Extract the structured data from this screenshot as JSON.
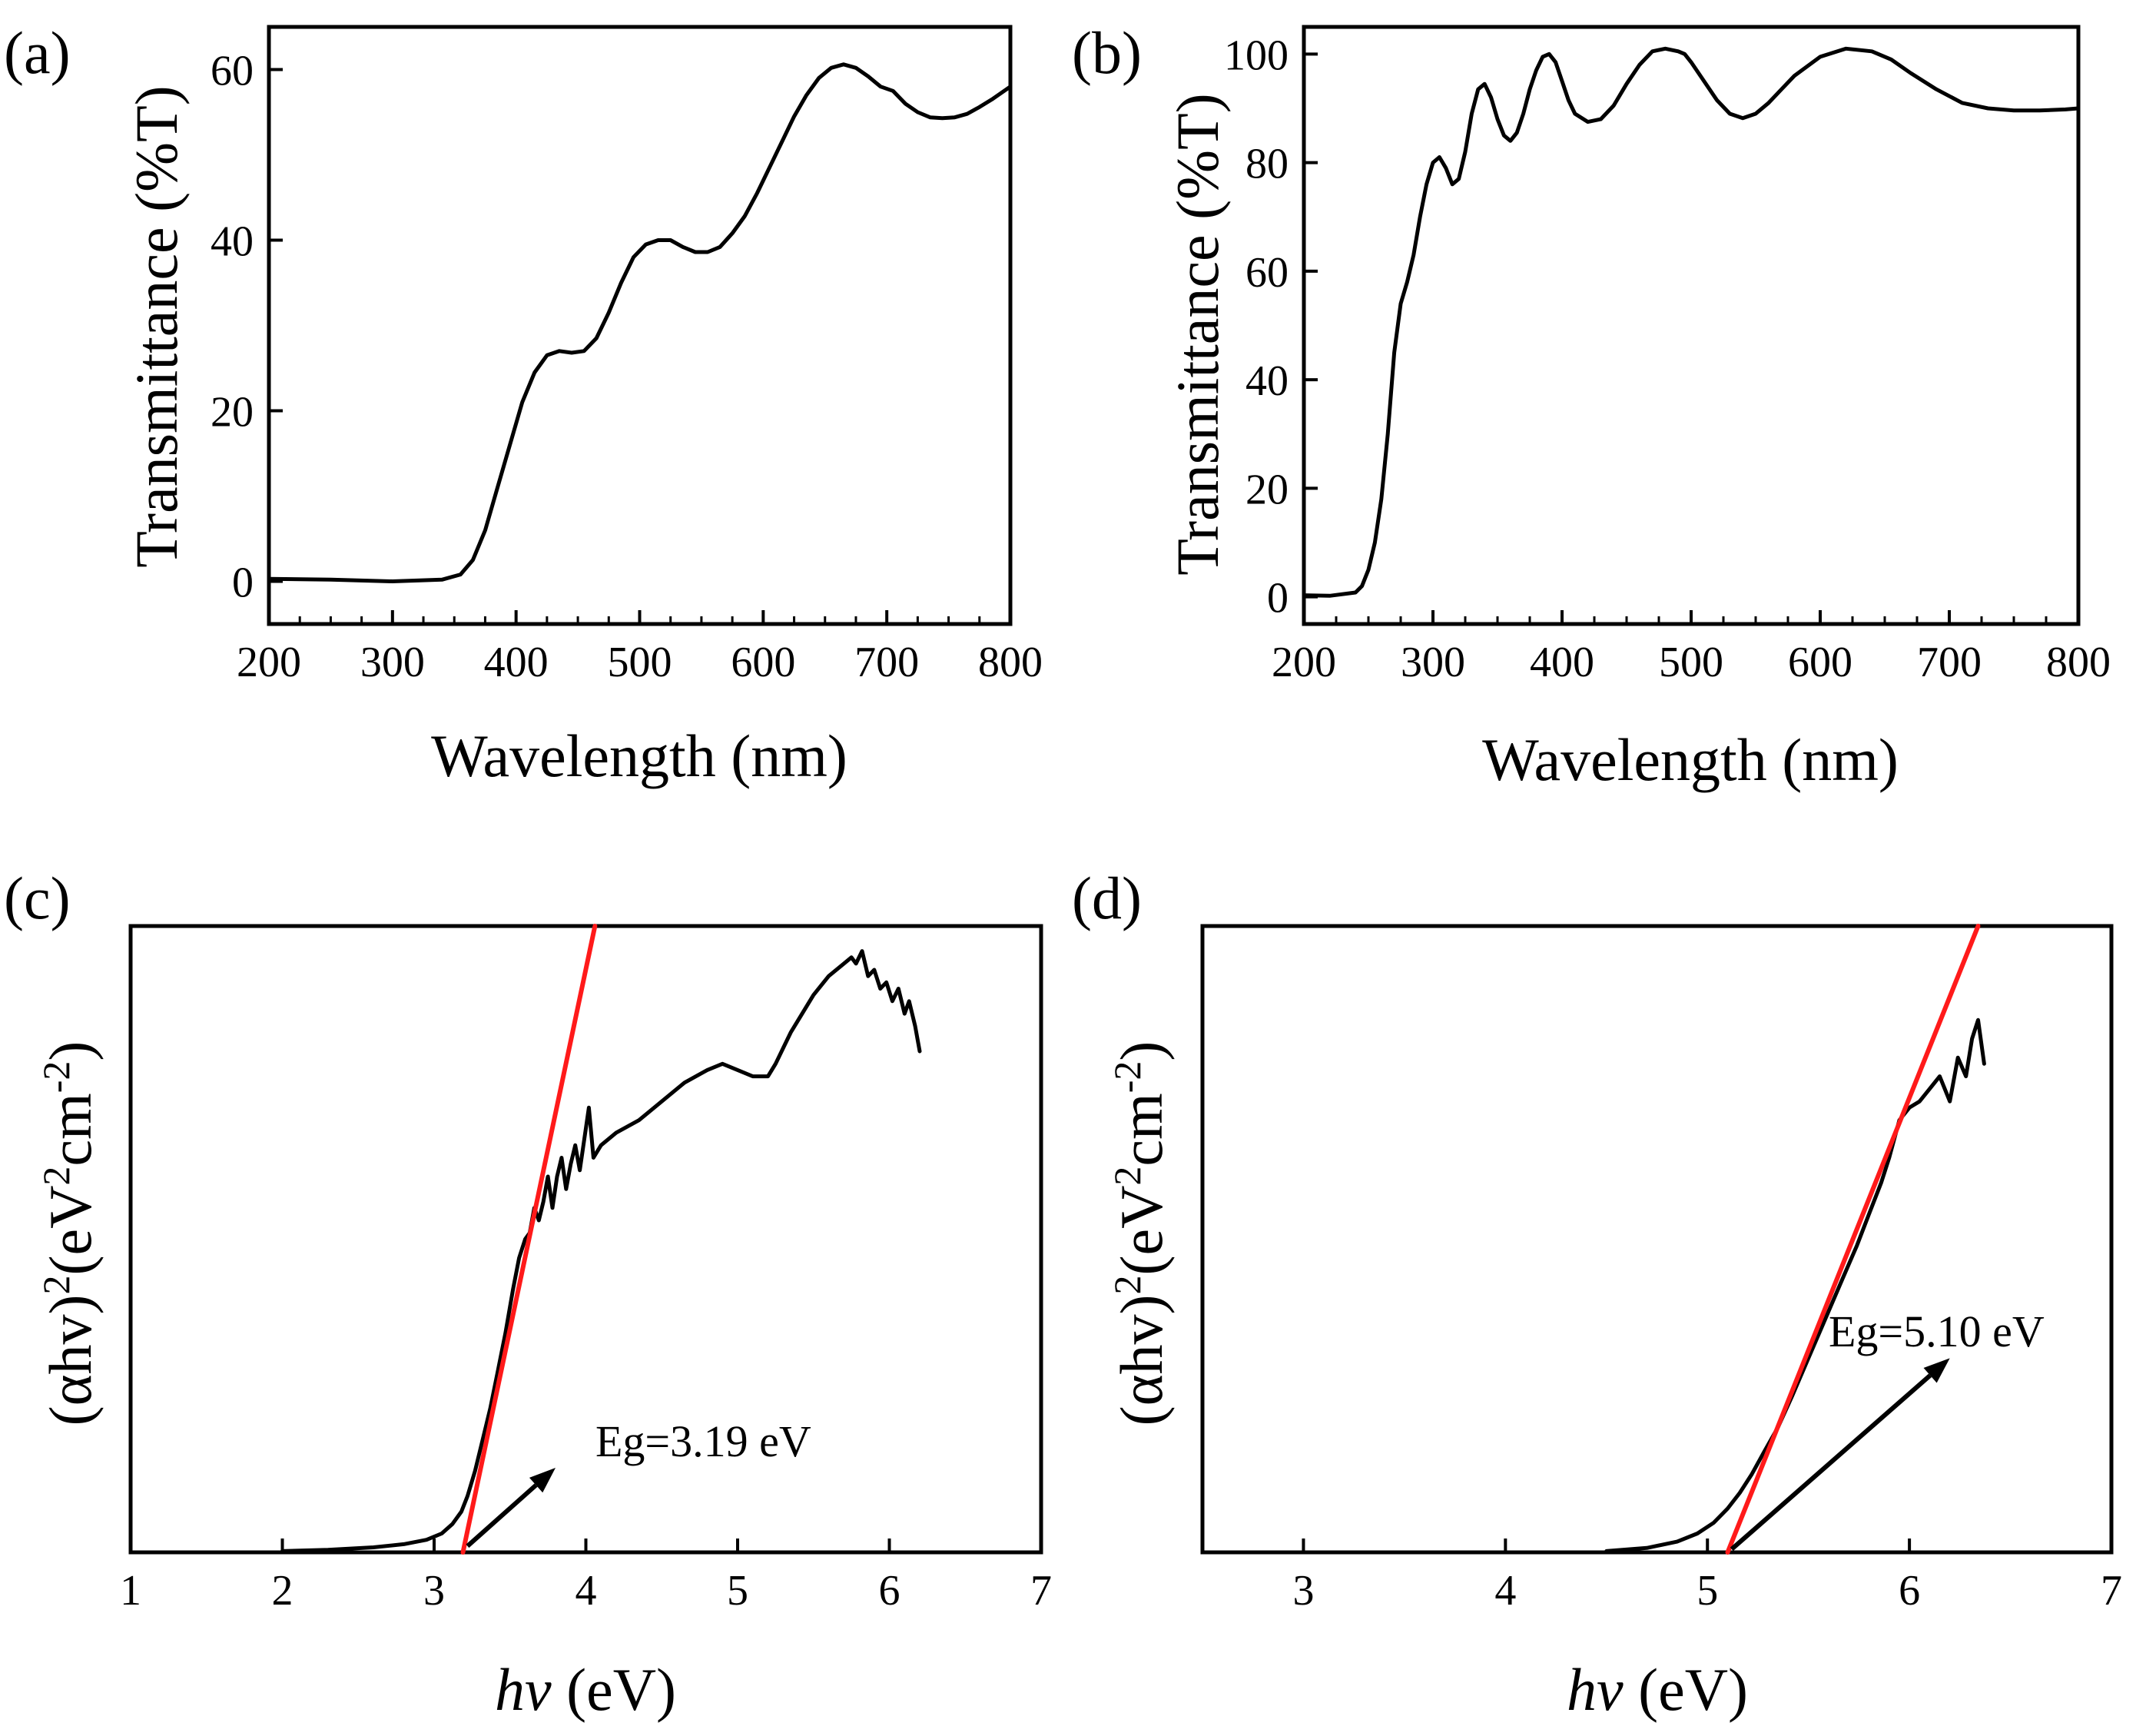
{
  "chart_data": [
    {
      "id": "a",
      "type": "line",
      "panel_label": "(a)",
      "xlabel": "Wavelength (nm)",
      "ylabel": "Transmittance (%T)",
      "xlim": [
        200,
        800
      ],
      "ylim": [
        -5,
        65
      ],
      "xticks": [
        200,
        300,
        400,
        500,
        600,
        700,
        800
      ],
      "yticks": [
        0,
        20,
        40,
        60
      ],
      "grid": false,
      "series": [
        {
          "x": [
            200,
            250,
            300,
            340,
            355,
            365,
            375,
            385,
            395,
            405,
            415,
            425,
            435,
            445,
            455,
            465,
            475,
            485,
            495,
            505,
            515,
            525,
            535,
            545,
            555,
            565,
            575,
            585,
            595,
            605,
            615,
            625,
            635,
            645,
            655,
            665,
            675,
            685,
            695,
            705,
            715,
            725,
            735,
            745,
            755,
            765,
            775,
            785,
            800
          ],
          "y": [
            0.3,
            0.2,
            0.0,
            0.2,
            0.8,
            2.5,
            6.0,
            11.0,
            16.0,
            21.0,
            24.5,
            26.5,
            27.0,
            26.8,
            27.0,
            28.5,
            31.5,
            35.0,
            38.0,
            39.5,
            40.0,
            40.0,
            39.2,
            38.6,
            38.6,
            39.2,
            40.8,
            42.8,
            45.5,
            48.5,
            51.5,
            54.5,
            57.0,
            59.0,
            60.2,
            60.6,
            60.2,
            59.2,
            58.0,
            57.5,
            56.0,
            55.0,
            54.4,
            54.3,
            54.4,
            54.8,
            55.6,
            56.5,
            58.0
          ]
        }
      ]
    },
    {
      "id": "b",
      "type": "line",
      "panel_label": "(b)",
      "xlabel": "Wavelength (nm)",
      "ylabel": "Transmittance (%T)",
      "xlim": [
        200,
        800
      ],
      "ylim": [
        -5,
        105
      ],
      "xticks": [
        200,
        300,
        400,
        500,
        600,
        700,
        800
      ],
      "yticks": [
        0,
        20,
        40,
        60,
        80,
        100
      ],
      "grid": false,
      "series": [
        {
          "x": [
            200,
            220,
            240,
            245,
            250,
            255,
            260,
            265,
            270,
            275,
            280,
            285,
            290,
            295,
            300,
            305,
            310,
            315,
            320,
            325,
            330,
            335,
            340,
            345,
            350,
            355,
            360,
            365,
            370,
            375,
            380,
            385,
            390,
            395,
            400,
            405,
            410,
            420,
            430,
            440,
            450,
            460,
            470,
            480,
            490,
            495,
            500,
            510,
            520,
            530,
            540,
            550,
            560,
            570,
            580,
            600,
            620,
            640,
            655,
            670,
            690,
            710,
            730,
            750,
            770,
            790,
            800
          ],
          "y": [
            0.3,
            0.2,
            0.8,
            2.0,
            5.0,
            10.0,
            18.0,
            30.0,
            45.0,
            54.0,
            58.0,
            63.0,
            70.0,
            76.0,
            80.0,
            81.0,
            79.0,
            76.0,
            77.0,
            82.0,
            89.0,
            93.5,
            94.5,
            92.0,
            88.0,
            85.0,
            84.0,
            85.5,
            89.0,
            93.5,
            97.0,
            99.5,
            100.0,
            98.5,
            95.0,
            91.5,
            89.0,
            87.5,
            88.0,
            90.5,
            94.5,
            98.0,
            100.5,
            101.0,
            100.5,
            100.0,
            98.5,
            95.0,
            91.5,
            89.0,
            88.2,
            89.0,
            91.0,
            93.5,
            96.0,
            99.5,
            101.0,
            100.5,
            99.0,
            96.5,
            93.5,
            91.0,
            90.0,
            89.6,
            89.6,
            89.8,
            90.0
          ]
        }
      ]
    },
    {
      "id": "c",
      "type": "line",
      "panel_label": "(c)",
      "xlabel_italic": "hv",
      "xlabel_rest": " (eV)",
      "ylabel_main": "(αhv)",
      "ylabel_sup1": "2",
      "ylabel_mid": "(eV",
      "ylabel_sup2": "2",
      "ylabel_mid2": "cm",
      "ylabel_sup3": "-2",
      "ylabel_end": ")",
      "xlim": [
        1,
        7
      ],
      "ylim": [
        0,
        1
      ],
      "xticks": [
        1,
        2,
        3,
        4,
        5,
        6,
        7
      ],
      "grid": false,
      "annotation": "Eg=3.19 eV",
      "band_gap_eV": 3.19,
      "series": [
        {
          "name": "",
          "x": [
            2.0,
            2.3,
            2.6,
            2.8,
            2.95,
            3.05,
            3.12,
            3.18,
            3.22,
            3.27,
            3.32,
            3.37,
            3.42,
            3.47,
            3.52,
            3.56,
            3.6,
            3.63,
            3.66,
            3.69,
            3.72,
            3.75,
            3.78,
            3.81,
            3.84,
            3.87,
            3.9,
            3.93,
            3.96,
            3.99,
            4.02,
            4.05,
            4.1,
            4.2,
            4.35,
            4.5,
            4.65,
            4.8,
            4.9,
            5.0,
            5.1,
            5.2,
            5.25,
            5.35,
            5.5,
            5.6,
            5.7,
            5.75,
            5.78,
            5.82,
            5.86,
            5.9,
            5.94,
            5.98,
            6.02,
            6.06,
            6.1,
            6.13,
            6.17,
            6.2
          ],
          "y": [
            0.002,
            0.004,
            0.008,
            0.013,
            0.02,
            0.03,
            0.045,
            0.065,
            0.09,
            0.13,
            0.18,
            0.23,
            0.29,
            0.35,
            0.42,
            0.47,
            0.5,
            0.51,
            0.55,
            0.53,
            0.56,
            0.6,
            0.55,
            0.6,
            0.63,
            0.58,
            0.62,
            0.65,
            0.61,
            0.66,
            0.71,
            0.63,
            0.65,
            0.67,
            0.69,
            0.72,
            0.75,
            0.77,
            0.78,
            0.77,
            0.76,
            0.76,
            0.78,
            0.83,
            0.89,
            0.92,
            0.94,
            0.95,
            0.94,
            0.96,
            0.92,
            0.93,
            0.9,
            0.91,
            0.88,
            0.9,
            0.86,
            0.88,
            0.84,
            0.8
          ]
        },
        {
          "name": "",
          "fit": true,
          "x": [
            3.19,
            4.06
          ],
          "y": [
            0.0,
            1.0
          ]
        }
      ],
      "arrow": {
        "from": [
          3.22,
          0.01
        ],
        "to": [
          3.8,
          0.135
        ]
      }
    },
    {
      "id": "d",
      "type": "line",
      "panel_label": "(d)",
      "xlabel_italic": "hv",
      "xlabel_rest": " (eV)",
      "ylabel_main": "(αhv)",
      "ylabel_sup1": "2",
      "ylabel_mid": "(eV",
      "ylabel_sup2": "2",
      "ylabel_mid2": "cm",
      "ylabel_sup3": "-2",
      "ylabel_end": ")",
      "xlim": [
        2.5,
        7
      ],
      "ylim": [
        0,
        1
      ],
      "xticks": [
        3,
        4,
        5,
        6,
        7
      ],
      "grid": false,
      "annotation": "Eg=5.10 eV",
      "band_gap_eV": 5.1,
      "series": [
        {
          "name": "",
          "x": [
            4.5,
            4.7,
            4.85,
            4.95,
            5.03,
            5.1,
            5.16,
            5.22,
            5.28,
            5.35,
            5.42,
            5.5,
            5.58,
            5.66,
            5.74,
            5.8,
            5.86,
            5.9,
            5.95,
            6.0,
            6.05,
            6.1,
            6.15,
            6.2,
            6.24,
            6.28,
            6.31,
            6.34,
            6.37
          ],
          "y": [
            0.002,
            0.007,
            0.017,
            0.03,
            0.047,
            0.07,
            0.095,
            0.125,
            0.16,
            0.2,
            0.25,
            0.31,
            0.37,
            0.43,
            0.49,
            0.54,
            0.59,
            0.63,
            0.69,
            0.71,
            0.72,
            0.74,
            0.76,
            0.72,
            0.79,
            0.76,
            0.82,
            0.85,
            0.78
          ]
        },
        {
          "name": "",
          "fit": true,
          "x": [
            5.1,
            6.34
          ],
          "y": [
            0.0,
            1.0
          ]
        }
      ],
      "arrow": {
        "from": [
          5.12,
          0.005
        ],
        "to": [
          6.2,
          0.31
        ]
      }
    }
  ]
}
